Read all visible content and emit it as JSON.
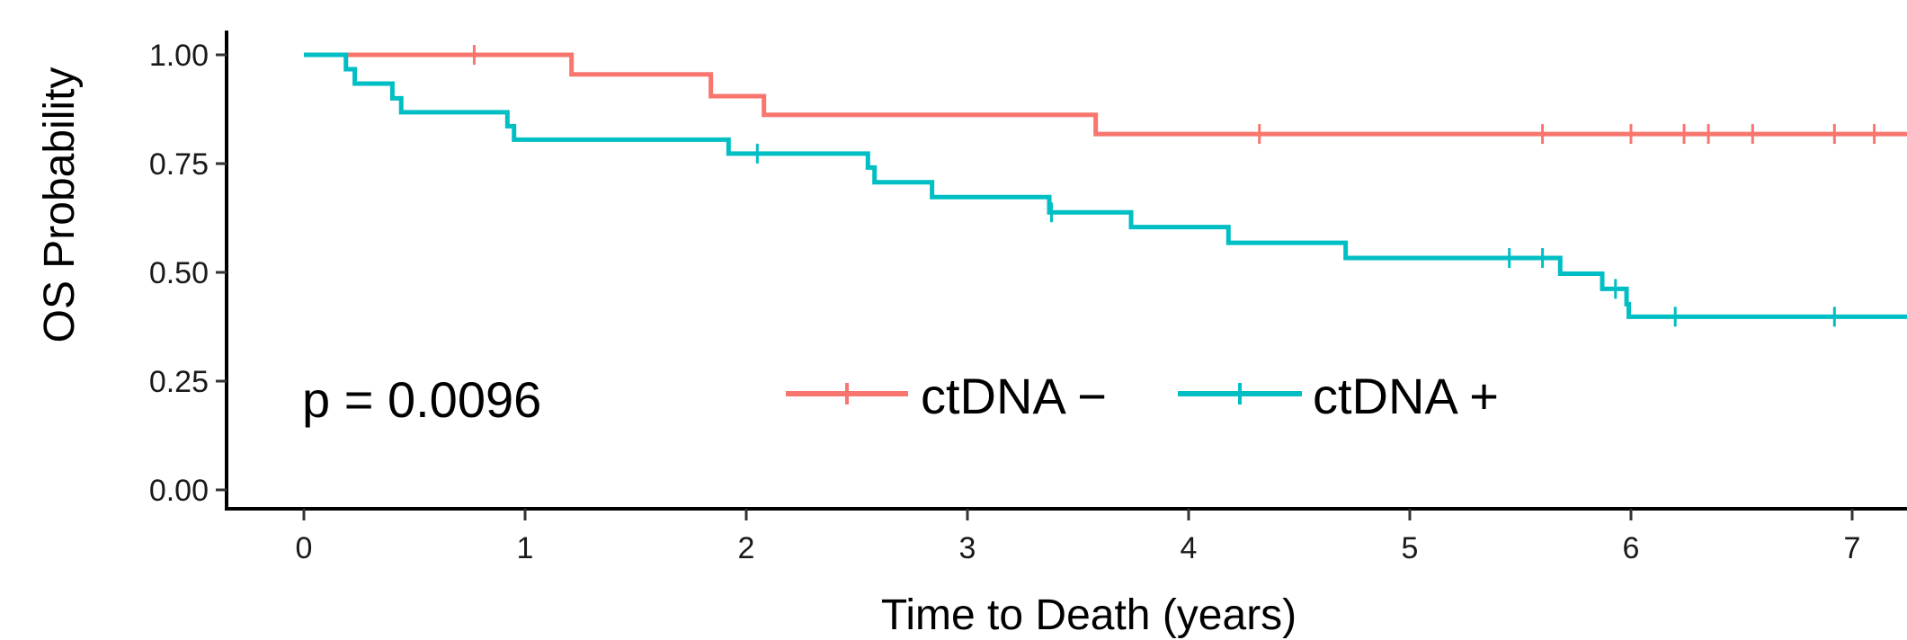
{
  "chart_data": {
    "type": "line",
    "title": "",
    "xlabel": "Time to Death (years)",
    "ylabel": "OS Probability",
    "xlim": [
      -0.35,
      7.25
    ],
    "ylim": [
      0,
      1.02
    ],
    "x_ticks": [
      {
        "value": 0,
        "label": "0"
      },
      {
        "value": 1,
        "label": "1"
      },
      {
        "value": 2,
        "label": "2"
      },
      {
        "value": 3,
        "label": "3"
      },
      {
        "value": 4,
        "label": "4"
      },
      {
        "value": 5,
        "label": "5"
      },
      {
        "value": 6,
        "label": "6"
      },
      {
        "value": 7,
        "label": "7"
      }
    ],
    "y_ticks": [
      {
        "value": 0.0,
        "label": "0.00"
      },
      {
        "value": 0.25,
        "label": "0.25"
      },
      {
        "value": 0.5,
        "label": "0.50"
      },
      {
        "value": 0.75,
        "label": "0.75"
      },
      {
        "value": 1.0,
        "label": "1.00"
      }
    ],
    "grid": false,
    "legend_position": "bottom-center",
    "annotation": "p = 0.0096",
    "series": [
      {
        "name": "ctDNA −",
        "color": "#F8766D",
        "step_points": [
          [
            0,
            1.0
          ],
          [
            1.21,
            0.955
          ],
          [
            1.84,
            0.905
          ],
          [
            2.08,
            0.862
          ],
          [
            3.58,
            0.818
          ],
          [
            7.25,
            0.818
          ]
        ],
        "censor_marks": [
          [
            0.77,
            1.0
          ],
          [
            4.32,
            0.818
          ],
          [
            5.6,
            0.818
          ],
          [
            6.0,
            0.818
          ],
          [
            6.24,
            0.818
          ],
          [
            6.35,
            0.818
          ],
          [
            6.55,
            0.818
          ],
          [
            6.92,
            0.818
          ],
          [
            7.1,
            0.818
          ]
        ]
      },
      {
        "name": "ctDNA +",
        "color": "#00BFC4",
        "step_points": [
          [
            0,
            1.0
          ],
          [
            0.19,
            0.967
          ],
          [
            0.23,
            0.934
          ],
          [
            0.4,
            0.9
          ],
          [
            0.44,
            0.868
          ],
          [
            0.92,
            0.836
          ],
          [
            0.95,
            0.805
          ],
          [
            1.92,
            0.773
          ],
          [
            2.55,
            0.741
          ],
          [
            2.58,
            0.707
          ],
          [
            2.84,
            0.673
          ],
          [
            3.37,
            0.638
          ],
          [
            3.74,
            0.604
          ],
          [
            4.18,
            0.568
          ],
          [
            4.71,
            0.533
          ],
          [
            5.68,
            0.497
          ],
          [
            5.87,
            0.462
          ],
          [
            5.98,
            0.427
          ],
          [
            5.99,
            0.398
          ],
          [
            7.25,
            0.398
          ]
        ],
        "censor_marks": [
          [
            2.05,
            0.773
          ],
          [
            3.38,
            0.638
          ],
          [
            5.45,
            0.533
          ],
          [
            5.6,
            0.533
          ],
          [
            5.93,
            0.462
          ],
          [
            6.2,
            0.398
          ],
          [
            6.92,
            0.398
          ]
        ]
      }
    ]
  }
}
